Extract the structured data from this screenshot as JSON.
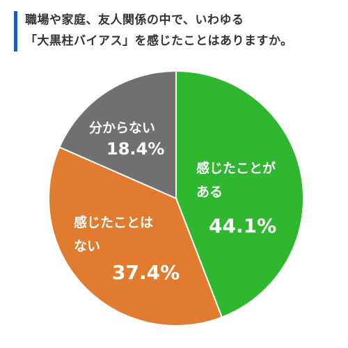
{
  "title": {
    "line1": "職場や家庭、友人関係の中で、いわゆる",
    "line2": "「大黒柱バイアス」を感じたことはありますか。"
  },
  "colors": {
    "title_bar": "#1e5fb4",
    "slice_1": "#2fb72f",
    "slice_2": "#e07b30",
    "slice_3": "#707070",
    "label_text": "#ffffff",
    "stroke": "#ffffff"
  },
  "chart_data": {
    "type": "pie",
    "start_angle": "12 o'clock",
    "direction": "clockwise",
    "slices": [
      {
        "label_lines": [
          "感じたことが",
          "ある"
        ],
        "value_label": "44.1%",
        "value": 44.1,
        "color": "#2fb72f"
      },
      {
        "label_lines": [
          "感じたことは",
          "ない"
        ],
        "value_label": "37.4%",
        "value": 37.4,
        "color": "#e07b30"
      },
      {
        "label_lines": [
          "分からない"
        ],
        "value_label": "18.4%",
        "value": 18.4,
        "color": "#707070"
      }
    ]
  }
}
